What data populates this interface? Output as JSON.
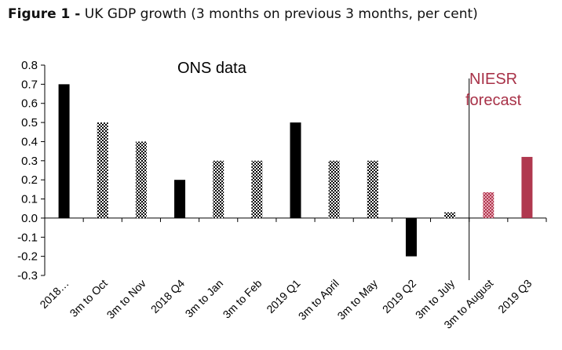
{
  "title": {
    "prefix": "Figure 1 -",
    "text": "UK GDP growth (3 months on previous 3 months, per cent)"
  },
  "colors": {
    "ons_solid": "#000000",
    "ons_dotted": "#000000",
    "forecast": "#b0384f",
    "forecast_text": "#a83248"
  },
  "chart_data": {
    "type": "bar",
    "title": "UK GDP growth (3 months on previous 3 months, per cent)",
    "xlabel": "",
    "ylabel": "",
    "ylim": [
      -0.3,
      0.8
    ],
    "yticks": [
      "0.8",
      "0.7",
      "0.6",
      "0.5",
      "0.4",
      "0.3",
      "0.2",
      "0.1",
      "0.0",
      "-0.1",
      "-0.2",
      "-0.3"
    ],
    "categories": [
      "2018…",
      "3m to Oct",
      "3m to Nov",
      "2018 Q4",
      "3m to Jan",
      "3m to Feb",
      "2019 Q1",
      "3m to April",
      "3m to May",
      "2019 Q2",
      "3m to July",
      "3m to August",
      "2019 Q3"
    ],
    "values": [
      0.7,
      0.5,
      0.4,
      0.2,
      0.3,
      0.3,
      0.5,
      0.3,
      0.3,
      -0.2,
      0.03,
      0.135,
      0.32
    ],
    "styles": [
      "solid",
      "dotted",
      "dotted",
      "solid",
      "dotted",
      "dotted",
      "solid",
      "dotted",
      "dotted",
      "solid",
      "dotted",
      "forecast-dotted",
      "forecast-solid"
    ],
    "annotations": {
      "ons": "ONS data",
      "niesr_line1": "NIESR",
      "niesr_line2": "forecast"
    },
    "divider_after_index": 10
  }
}
